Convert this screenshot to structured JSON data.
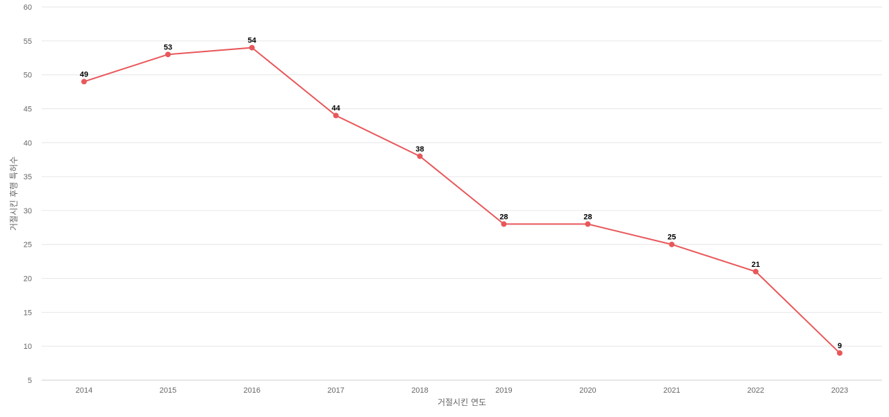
{
  "colors": {
    "series": "#e8575a"
  },
  "chart_data": {
    "type": "line",
    "x": [
      "2014",
      "2015",
      "2016",
      "2017",
      "2018",
      "2019",
      "2020",
      "2021",
      "2022",
      "2023"
    ],
    "series": [
      {
        "values": [
          49,
          53,
          54,
          44,
          38,
          28,
          28,
          25,
          21,
          9
        ]
      }
    ],
    "xlabel": "거절시킨 연도",
    "ylabel": "거절시킨 후행 특허수",
    "ylim": [
      5,
      60
    ],
    "yticks": [
      5,
      10,
      15,
      20,
      25,
      30,
      35,
      40,
      45,
      50,
      55,
      60
    ],
    "grid": true,
    "legend": "none"
  }
}
